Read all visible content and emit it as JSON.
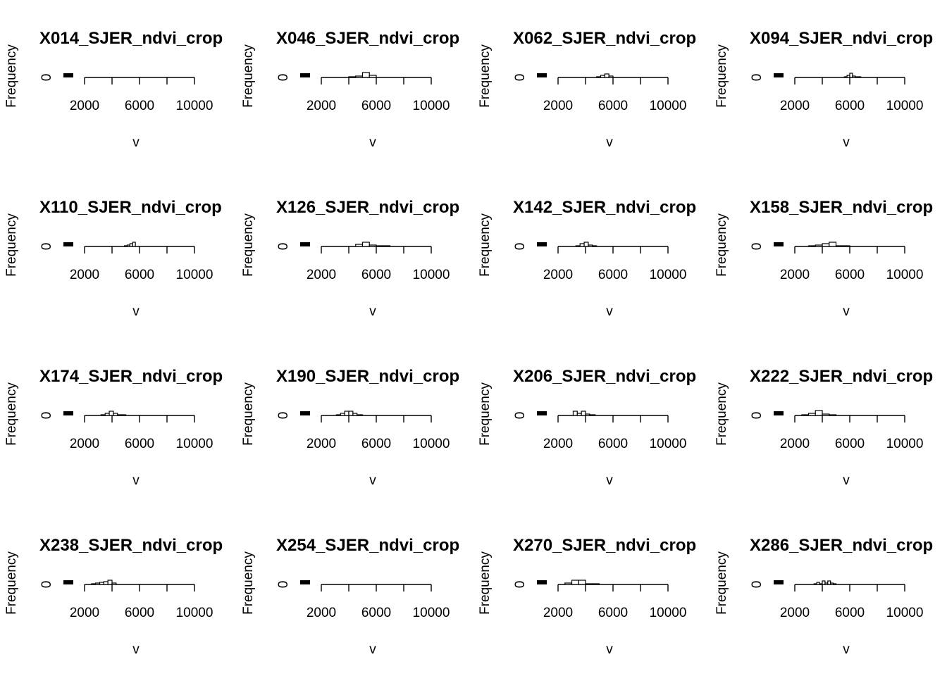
{
  "chart_data": [
    {
      "type": "bar",
      "title": "X014_SJER_ndvi_crop",
      "xlabel": "v",
      "ylabel": "Frequency",
      "xlim": [
        0,
        10000
      ],
      "x_ticks": [
        "2000",
        "6000",
        "10000"
      ],
      "y_ticks": [
        "0"
      ],
      "bins": []
    },
    {
      "type": "bar",
      "title": "X046_SJER_ndvi_crop",
      "xlabel": "v",
      "ylabel": "Frequency",
      "xlim": [
        0,
        10000
      ],
      "x_ticks": [
        "2000",
        "6000",
        "10000"
      ],
      "y_ticks": [
        "0"
      ],
      "bins": [
        [
          4000,
          4500,
          1
        ],
        [
          4500,
          5000,
          2
        ],
        [
          5000,
          5500,
          7
        ],
        [
          5500,
          6000,
          3
        ]
      ]
    },
    {
      "type": "bar",
      "title": "X062_SJER_ndvi_crop",
      "xlabel": "v",
      "ylabel": "Frequency",
      "xlim": [
        0,
        10000
      ],
      "x_ticks": [
        "2000",
        "6000",
        "10000"
      ],
      "y_ticks": [
        "0"
      ],
      "bins": [
        [
          4800,
          5100,
          1
        ],
        [
          5100,
          5400,
          3
        ],
        [
          5400,
          5700,
          5
        ],
        [
          5700,
          6000,
          2
        ]
      ]
    },
    {
      "type": "bar",
      "title": "X094_SJER_ndvi_crop",
      "xlabel": "v",
      "ylabel": "Frequency",
      "xlim": [
        0,
        10000
      ],
      "x_ticks": [
        "2000",
        "6000",
        "10000"
      ],
      "y_ticks": [
        "0"
      ],
      "bins": [
        [
          5600,
          5800,
          1
        ],
        [
          5800,
          6000,
          3
        ],
        [
          6000,
          6200,
          6
        ],
        [
          6200,
          6400,
          2
        ],
        [
          6400,
          6800,
          1
        ]
      ]
    },
    {
      "type": "bar",
      "title": "X110_SJER_ndvi_crop",
      "xlabel": "v",
      "ylabel": "Frequency",
      "xlim": [
        0,
        10000
      ],
      "x_ticks": [
        "2000",
        "6000",
        "10000"
      ],
      "y_ticks": [
        "0"
      ],
      "bins": [
        [
          4900,
          5100,
          1
        ],
        [
          5100,
          5300,
          2
        ],
        [
          5300,
          5500,
          4
        ],
        [
          5500,
          5700,
          6
        ]
      ]
    },
    {
      "type": "bar",
      "title": "X126_SJER_ndvi_crop",
      "xlabel": "v",
      "ylabel": "Frequency",
      "xlim": [
        0,
        10000
      ],
      "x_ticks": [
        "2000",
        "6000",
        "10000"
      ],
      "y_ticks": [
        "0"
      ],
      "bins": [
        [
          4500,
          5000,
          3
        ],
        [
          5000,
          5500,
          6
        ],
        [
          5500,
          6000,
          2
        ],
        [
          6000,
          6500,
          1
        ],
        [
          6500,
          7000,
          1
        ]
      ]
    },
    {
      "type": "bar",
      "title": "X142_SJER_ndvi_crop",
      "xlabel": "v",
      "ylabel": "Frequency",
      "xlim": [
        0,
        10000
      ],
      "x_ticks": [
        "2000",
        "6000",
        "10000"
      ],
      "y_ticks": [
        "0"
      ],
      "bins": [
        [
          3300,
          3600,
          1
        ],
        [
          3600,
          3900,
          4
        ],
        [
          3900,
          4200,
          6
        ],
        [
          4200,
          4500,
          2
        ],
        [
          4500,
          4800,
          1
        ]
      ]
    },
    {
      "type": "bar",
      "title": "X158_SJER_ndvi_crop",
      "xlabel": "v",
      "ylabel": "Frequency",
      "xlim": [
        0,
        10000
      ],
      "x_ticks": [
        "2000",
        "6000",
        "10000"
      ],
      "y_ticks": [
        "0"
      ],
      "bins": [
        [
          3000,
          3500,
          1
        ],
        [
          3500,
          4000,
          2
        ],
        [
          4000,
          4500,
          4
        ],
        [
          4500,
          5000,
          6
        ],
        [
          5000,
          6000,
          1
        ]
      ]
    },
    {
      "type": "bar",
      "title": "X174_SJER_ndvi_crop",
      "xlabel": "v",
      "ylabel": "Frequency",
      "xlim": [
        0,
        10000
      ],
      "x_ticks": [
        "2000",
        "6000",
        "10000"
      ],
      "y_ticks": [
        "0"
      ],
      "bins": [
        [
          3200,
          3500,
          1
        ],
        [
          3500,
          3800,
          3
        ],
        [
          3800,
          4100,
          6
        ],
        [
          4100,
          4400,
          3
        ],
        [
          4400,
          4700,
          1
        ],
        [
          4700,
          5000,
          1
        ]
      ]
    },
    {
      "type": "bar",
      "title": "X190_SJER_ndvi_crop",
      "xlabel": "v",
      "ylabel": "Frequency",
      "xlim": [
        0,
        10000
      ],
      "x_ticks": [
        "2000",
        "6000",
        "10000"
      ],
      "y_ticks": [
        "0"
      ],
      "bins": [
        [
          3100,
          3400,
          1
        ],
        [
          3400,
          3700,
          3
        ],
        [
          3700,
          4000,
          6
        ],
        [
          4000,
          4300,
          6
        ],
        [
          4300,
          4600,
          3
        ],
        [
          4600,
          5000,
          1
        ]
      ]
    },
    {
      "type": "bar",
      "title": "X206_SJER_ndvi_crop",
      "xlabel": "v",
      "ylabel": "Frequency",
      "xlim": [
        0,
        10000
      ],
      "x_ticks": [
        "2000",
        "6000",
        "10000"
      ],
      "y_ticks": [
        "0"
      ],
      "bins": [
        [
          3100,
          3400,
          6
        ],
        [
          3400,
          3700,
          3
        ],
        [
          3700,
          4000,
          6
        ],
        [
          4000,
          4300,
          2
        ],
        [
          4300,
          4700,
          1
        ]
      ]
    },
    {
      "type": "bar",
      "title": "X222_SJER_ndvi_crop",
      "xlabel": "v",
      "ylabel": "Frequency",
      "xlim": [
        0,
        10000
      ],
      "x_ticks": [
        "2000",
        "6000",
        "10000"
      ],
      "y_ticks": [
        "0"
      ],
      "bins": [
        [
          2500,
          3000,
          1
        ],
        [
          3000,
          3500,
          3
        ],
        [
          3500,
          4000,
          7
        ],
        [
          4000,
          4500,
          2
        ],
        [
          4500,
          5000,
          1
        ]
      ]
    },
    {
      "type": "bar",
      "title": "X238_SJER_ndvi_crop",
      "xlabel": "v",
      "ylabel": "Frequency",
      "xlim": [
        0,
        10000
      ],
      "x_ticks": [
        "2000",
        "6000",
        "10000"
      ],
      "y_ticks": [
        "0"
      ],
      "bins": [
        [
          2500,
          2800,
          1
        ],
        [
          2800,
          3100,
          2
        ],
        [
          3100,
          3400,
          3
        ],
        [
          3400,
          3700,
          4
        ],
        [
          3700,
          4000,
          6
        ],
        [
          4000,
          4300,
          2
        ]
      ]
    },
    {
      "type": "bar",
      "title": "X254_SJER_ndvi_crop",
      "xlabel": "v",
      "ylabel": "Frequency",
      "xlim": [
        0,
        10000
      ],
      "x_ticks": [
        "2000",
        "6000",
        "10000"
      ],
      "y_ticks": [
        "0"
      ],
      "bins": []
    },
    {
      "type": "bar",
      "title": "X270_SJER_ndvi_crop",
      "xlabel": "v",
      "ylabel": "Frequency",
      "xlim": [
        0,
        10000
      ],
      "x_ticks": [
        "2000",
        "6000",
        "10000"
      ],
      "y_ticks": [
        "0"
      ],
      "bins": [
        [
          2500,
          3000,
          2
        ],
        [
          3000,
          3500,
          6
        ],
        [
          3500,
          4000,
          6
        ],
        [
          4000,
          4500,
          1
        ],
        [
          4500,
          5000,
          1
        ]
      ]
    },
    {
      "type": "bar",
      "title": "X286_SJER_ndvi_crop",
      "xlabel": "v",
      "ylabel": "Frequency",
      "xlim": [
        0,
        10000
      ],
      "x_ticks": [
        "2000",
        "6000",
        "10000"
      ],
      "y_ticks": [
        "0"
      ],
      "bins": [
        [
          3400,
          3600,
          1
        ],
        [
          3600,
          3800,
          3
        ],
        [
          3800,
          4000,
          1
        ],
        [
          4000,
          4200,
          5
        ],
        [
          4200,
          4400,
          2
        ],
        [
          4400,
          4600,
          5
        ],
        [
          4600,
          4800,
          2
        ],
        [
          4800,
          5000,
          1
        ]
      ]
    }
  ]
}
